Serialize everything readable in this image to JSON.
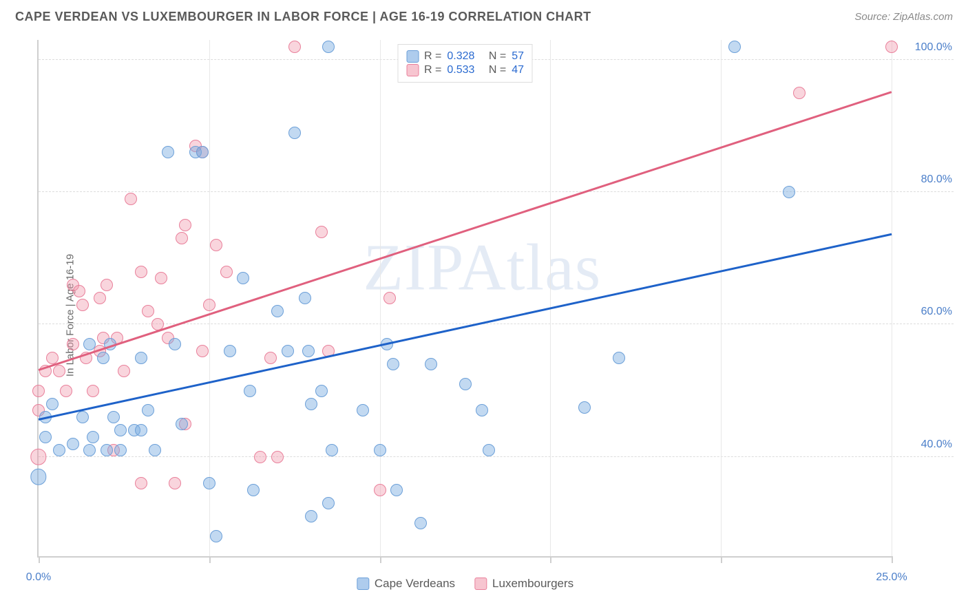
{
  "header": {
    "title": "CAPE VERDEAN VS LUXEMBOURGER IN LABOR FORCE | AGE 16-19 CORRELATION CHART",
    "source_prefix": "Source: ",
    "source_name": "ZipAtlas.com"
  },
  "chart": {
    "type": "scatter",
    "yaxis_title": "In Labor Force | Age 16-19",
    "background_color": "#ffffff",
    "grid_color": "#dcdcdc",
    "axis_color": "#cfcfcf",
    "xlim": [
      0,
      25
    ],
    "ylim": [
      25,
      103
    ],
    "xticks": [
      0,
      5,
      10,
      15,
      20,
      25
    ],
    "xtick_labels": {
      "0": "0.0%",
      "25": "25.0%"
    },
    "yticks": [
      40,
      60,
      80,
      100
    ],
    "ytick_labels": {
      "40": "40.0%",
      "60": "60.0%",
      "80": "80.0%",
      "100": "100.0%"
    },
    "marker_radius": 9,
    "marker_radius_large": 12,
    "line_width": 3,
    "label_fontsize": 16,
    "label_color": "#4a7ec9",
    "watermark": "ZIPAtlas",
    "legend_top": {
      "rows": [
        {
          "swatch": "blue",
          "r_label": "R =",
          "r_value": "0.328",
          "n_label": "N =",
          "n_value": "57"
        },
        {
          "swatch": "pink",
          "r_label": "R =",
          "r_value": "0.533",
          "n_label": "N =",
          "n_value": "47"
        }
      ]
    },
    "legend_bottom": {
      "items": [
        {
          "swatch": "blue",
          "label": "Cape Verdeans"
        },
        {
          "swatch": "pink",
          "label": "Luxembourgers"
        }
      ]
    },
    "series": {
      "blue": {
        "color_fill": "rgba(120,170,225,0.45)",
        "color_stroke": "#6b9fd8",
        "trend_color": "#1e62c9",
        "trend": {
          "x1": 0,
          "y1": 45.5,
          "x2": 25,
          "y2": 73.5
        },
        "points": [
          [
            0.0,
            37,
            1.3
          ],
          [
            0.2,
            46
          ],
          [
            0.2,
            43
          ],
          [
            0.6,
            41
          ],
          [
            0.4,
            48
          ],
          [
            1.0,
            42
          ],
          [
            1.3,
            46
          ],
          [
            1.5,
            57
          ],
          [
            1.6,
            43
          ],
          [
            1.5,
            41
          ],
          [
            1.9,
            55
          ],
          [
            2.0,
            41
          ],
          [
            2.1,
            57
          ],
          [
            2.2,
            46
          ],
          [
            2.4,
            44
          ],
          [
            2.4,
            41
          ],
          [
            2.8,
            44
          ],
          [
            3.0,
            55
          ],
          [
            3.2,
            47
          ],
          [
            3.0,
            44
          ],
          [
            3.4,
            41
          ],
          [
            3.8,
            86
          ],
          [
            4.0,
            57
          ],
          [
            4.2,
            45
          ],
          [
            4.6,
            86
          ],
          [
            4.8,
            86
          ],
          [
            5.0,
            36
          ],
          [
            5.2,
            28
          ],
          [
            5.6,
            56
          ],
          [
            6.0,
            67
          ],
          [
            6.2,
            50
          ],
          [
            6.3,
            35
          ],
          [
            7.0,
            62
          ],
          [
            7.3,
            56
          ],
          [
            7.5,
            89
          ],
          [
            7.8,
            64
          ],
          [
            7.9,
            56
          ],
          [
            8.0,
            31
          ],
          [
            8.0,
            48
          ],
          [
            8.3,
            50
          ],
          [
            8.5,
            33
          ],
          [
            8.5,
            102
          ],
          [
            8.6,
            41
          ],
          [
            9.5,
            47
          ],
          [
            10.0,
            41
          ],
          [
            10.2,
            57
          ],
          [
            10.4,
            54
          ],
          [
            10.5,
            35
          ],
          [
            11.2,
            30
          ],
          [
            11.5,
            54
          ],
          [
            12.5,
            51
          ],
          [
            13.0,
            47
          ],
          [
            13.2,
            41
          ],
          [
            16.0,
            47.5
          ],
          [
            17.0,
            55
          ],
          [
            20.4,
            102
          ],
          [
            22.0,
            80
          ]
        ]
      },
      "pink": {
        "color_fill": "rgba(240,150,170,0.40)",
        "color_stroke": "#e97f9a",
        "trend_color": "#e0607e",
        "trend": {
          "x1": 0,
          "y1": 53,
          "x2": 25,
          "y2": 95
        },
        "points": [
          [
            0.0,
            50
          ],
          [
            0.0,
            40,
            1.3
          ],
          [
            0.0,
            47
          ],
          [
            0.2,
            53
          ],
          [
            0.4,
            55
          ],
          [
            0.6,
            53
          ],
          [
            0.8,
            50
          ],
          [
            1.0,
            66
          ],
          [
            1.0,
            57
          ],
          [
            1.2,
            65
          ],
          [
            1.3,
            63
          ],
          [
            1.4,
            55
          ],
          [
            1.6,
            50
          ],
          [
            1.8,
            64
          ],
          [
            1.8,
            56
          ],
          [
            1.9,
            58
          ],
          [
            2.0,
            66
          ],
          [
            2.2,
            41
          ],
          [
            2.3,
            58
          ],
          [
            2.5,
            53
          ],
          [
            2.7,
            79
          ],
          [
            3.0,
            68
          ],
          [
            3.0,
            36
          ],
          [
            3.2,
            62
          ],
          [
            3.5,
            60
          ],
          [
            3.6,
            67
          ],
          [
            3.8,
            58
          ],
          [
            4.0,
            36
          ],
          [
            4.2,
            73
          ],
          [
            4.3,
            75
          ],
          [
            4.3,
            45
          ],
          [
            4.6,
            87
          ],
          [
            4.8,
            56
          ],
          [
            4.8,
            86
          ],
          [
            5.0,
            63
          ],
          [
            5.2,
            72
          ],
          [
            5.5,
            68
          ],
          [
            6.5,
            40
          ],
          [
            6.8,
            55
          ],
          [
            7.0,
            40
          ],
          [
            7.5,
            102
          ],
          [
            8.3,
            74
          ],
          [
            8.5,
            56
          ],
          [
            10.0,
            35
          ],
          [
            10.3,
            64
          ],
          [
            22.3,
            95
          ],
          [
            25.0,
            102
          ]
        ]
      }
    }
  }
}
